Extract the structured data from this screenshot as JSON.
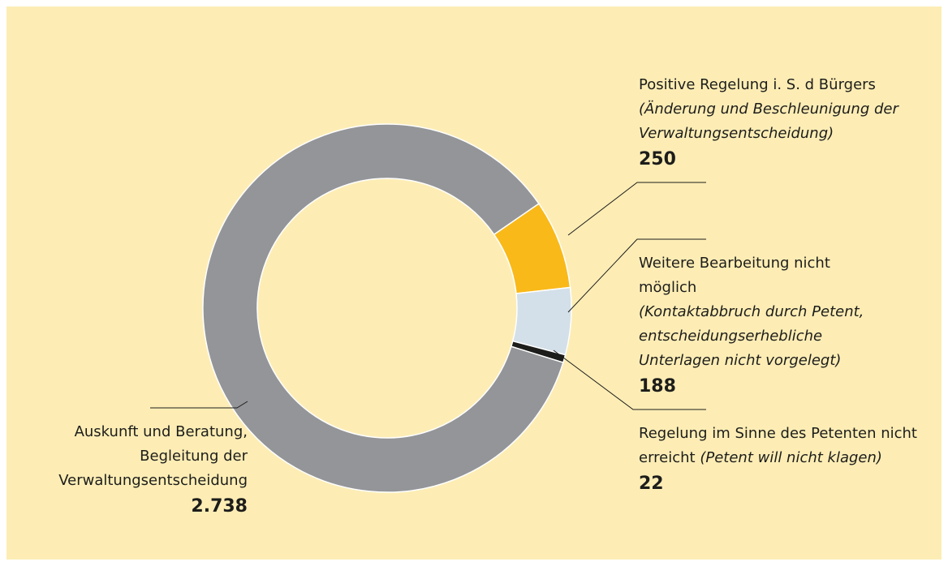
{
  "chart_data": {
    "type": "donut",
    "categories": [
      "Positive Regelung i. S. d Bürgers",
      "Weitere Bearbeitung nicht möglich",
      "Regelung im Sinne des Petenten nicht erreicht",
      "Auskunft und Beratung, Begleitung der Verwaltungsentscheidung"
    ],
    "notes": [
      "(Änderung und Beschleunigung der Verwaltungsentscheidung)",
      "(Kontaktabbruch durch Petent, entscheidungserhebliche Unterlagen nicht vorgelegt)",
      "(Petent will nicht klagen)",
      null
    ],
    "values": [
      250,
      188,
      22,
      2738
    ],
    "value_labels": [
      "250",
      "188",
      "22",
      "2.738"
    ],
    "colors": [
      "#f9b919",
      "#d3dfe9",
      "#1d1d1b",
      "#949599"
    ]
  }
}
